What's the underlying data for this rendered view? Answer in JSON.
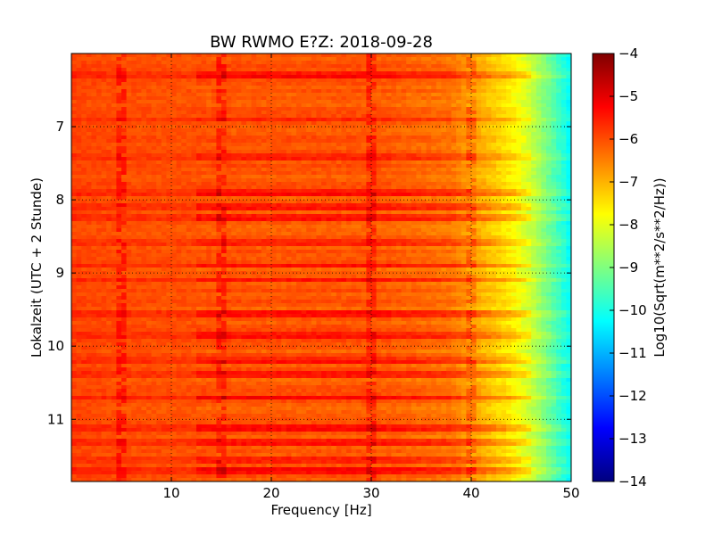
{
  "chart_data": {
    "type": "heatmap",
    "title": "BW RWMO E?Z: 2018-09-28",
    "xlabel": "Frequency [Hz]",
    "ylabel": "Lokalzeit (UTC + 2 Stunde)",
    "xlim": [
      0,
      50
    ],
    "ylim": [
      6.0,
      11.85
    ],
    "y_axis_inverted": true,
    "grid": true,
    "x_ticks": [
      10,
      20,
      30,
      40,
      50
    ],
    "x_tick_labels": [
      "10",
      "20",
      "30",
      "40",
      "50"
    ],
    "y_ticks": [
      7,
      8,
      9,
      10,
      11
    ],
    "y_tick_labels": [
      "7",
      "8",
      "9",
      "10",
      "11"
    ],
    "colorbar": {
      "label": "Log10(Sqrt(m**2/s**2/Hz))",
      "range": [
        -14,
        -4
      ],
      "ticks": [
        -4,
        -5,
        -6,
        -7,
        -8,
        -9,
        -10,
        -11,
        -12,
        -13,
        -14
      ],
      "tick_labels": [
        "−4",
        "−5",
        "−6",
        "−7",
        "−8",
        "−9",
        "−10",
        "−11",
        "−12",
        "−13",
        "−14"
      ],
      "colormap": "jet"
    },
    "frequency_profile": {
      "description_points_hz": [
        0,
        5,
        20,
        30,
        38,
        40,
        42,
        44,
        46,
        48,
        50
      ],
      "log_level": [
        -5.9,
        -6.0,
        -6.1,
        -6.1,
        -6.4,
        -6.8,
        -7.2,
        -7.6,
        -8.3,
        -9.3,
        -10.3
      ]
    },
    "strong_time_bands_hours": [
      6.3,
      6.9,
      7.4,
      7.9,
      8.1,
      8.25,
      8.6,
      8.9,
      9.1,
      9.55,
      9.85,
      10.2,
      10.4,
      10.7,
      11.1,
      11.3,
      11.55,
      11.7
    ],
    "line_features_hz": [
      5,
      15,
      30,
      40
    ]
  }
}
